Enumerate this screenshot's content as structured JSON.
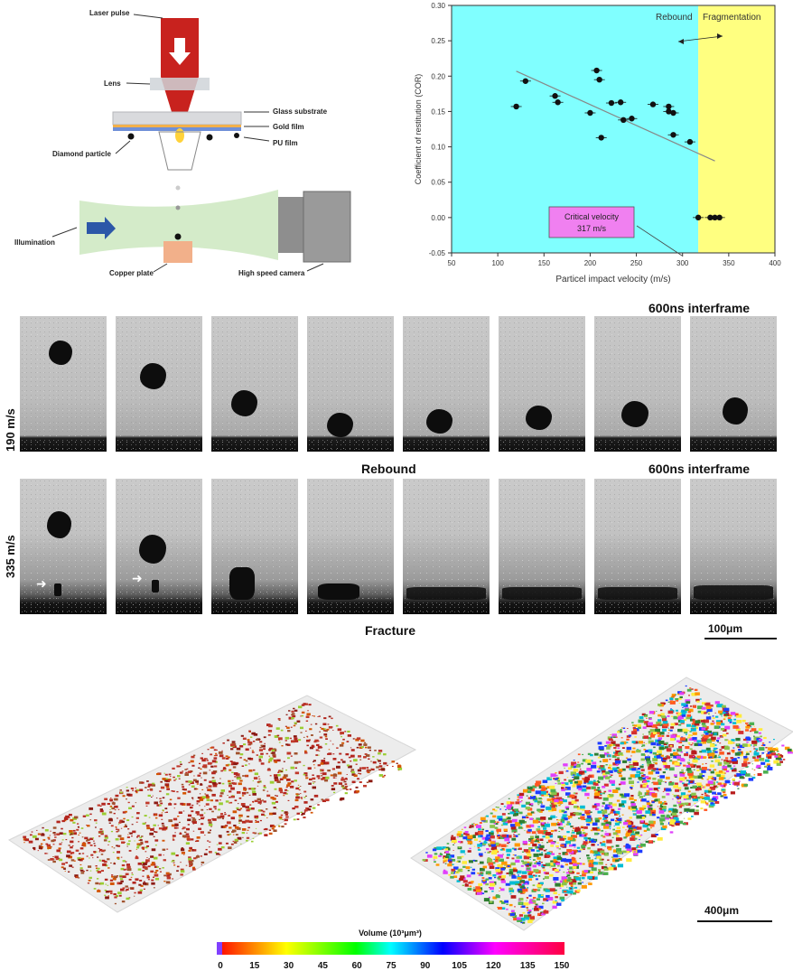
{
  "schematic": {
    "labels": {
      "laser_pulse": "Laser pulse",
      "lens": "Lens",
      "glass_substrate": "Glass substrate",
      "gold_film": "Gold film",
      "pu_film": "PU film",
      "diamond_particle": "Diamond particle",
      "illumination": "Illumination",
      "copper_plate": "Copper plate",
      "high_speed_camera": "High speed camera"
    }
  },
  "plot": {
    "region_rebound": "Rebound",
    "region_fragmentation": "Fragmentation",
    "critical_label": "Critical velocity",
    "critical_value": "317 m/s",
    "colors": {
      "rebound_bg": "#80ffff",
      "fragmentation_bg": "#ffff80",
      "critical_box": "#f080f0"
    }
  },
  "chart_data": {
    "type": "scatter",
    "xlabel": "Particel impact velocity (m/s)",
    "ylabel": "Coefficient of restitution (COR)",
    "xlim": [
      50,
      400
    ],
    "ylim": [
      -0.05,
      0.3
    ],
    "x_ticks": [
      "50",
      "100",
      "150",
      "200",
      "250",
      "300",
      "350",
      "400"
    ],
    "y_ticks": [
      "-0.05",
      "0.00",
      "0.05",
      "0.10",
      "0.15",
      "0.20",
      "0.25",
      "0.30"
    ],
    "critical_velocity": 317,
    "trend_line": {
      "x": [
        120,
        335
      ],
      "y": [
        0.207,
        0.08
      ]
    },
    "series": [
      {
        "x": [
          120,
          130,
          162,
          165,
          200,
          207,
          210,
          212,
          223,
          233,
          236,
          245,
          268,
          285,
          290,
          290,
          285,
          308,
          317,
          330,
          335,
          340
        ],
        "y": [
          0.157,
          0.193,
          0.172,
          0.163,
          0.148,
          0.208,
          0.195,
          0.113,
          0.162,
          0.163,
          0.138,
          0.14,
          0.16,
          0.157,
          0.148,
          0.117,
          0.15,
          0.107,
          0.0,
          0.0,
          0.0,
          0.0
        ]
      }
    ]
  },
  "frames": {
    "interframe_top": "600ns interframe",
    "interframe_mid": "600ns interframe",
    "row1_label": "190 m/s",
    "row2_label": "335 m/s",
    "row1_caption": "Rebound",
    "row2_caption": "Fracture",
    "scalebar": "100μm"
  },
  "volume": {
    "scalebar": "400μm",
    "colorbar_title": "Volume (10³μm³)",
    "ticks": [
      "0",
      "15",
      "30",
      "45",
      "60",
      "75",
      "90",
      "105",
      "120",
      "135",
      "150"
    ]
  }
}
